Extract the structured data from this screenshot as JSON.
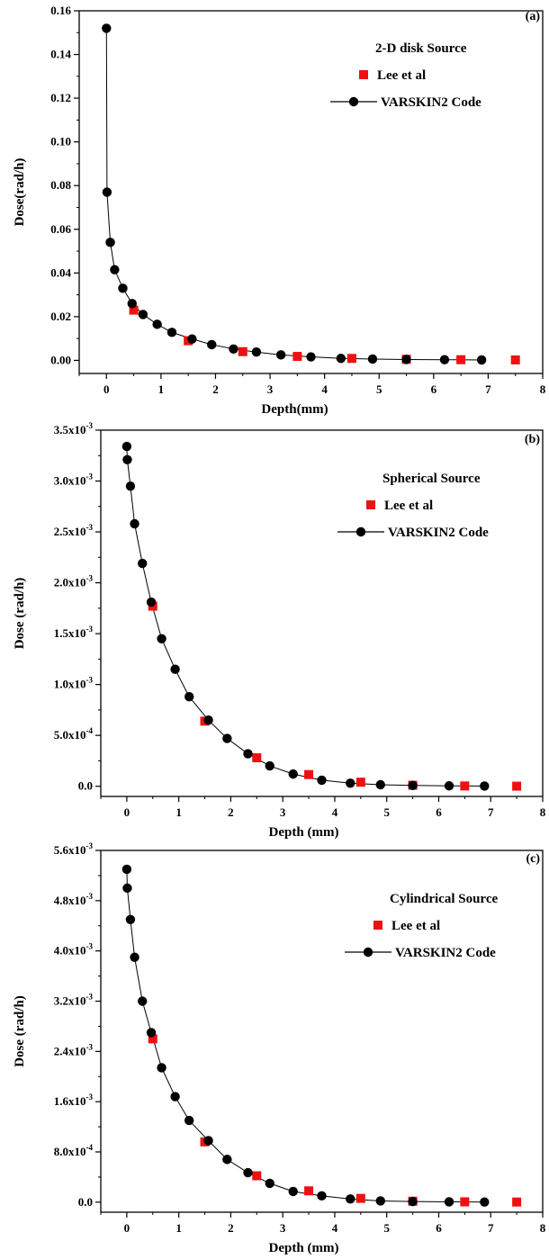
{
  "figure": {
    "panels": [
      {
        "tag": "(a)",
        "legend_title": "2-D disk Source",
        "xlabel": "Depth(mm)",
        "ylabel": "Dose(rad/h)"
      },
      {
        "tag": "(b)",
        "legend_title": "Spherical Source",
        "xlabel": "Depth (mm)",
        "ylabel": "Dose (rad/h)"
      },
      {
        "tag": "(c)",
        "legend_title": "Cylindrical Source",
        "xlabel": "Depth (mm)",
        "ylabel": "Dose (rad/h)"
      }
    ]
  },
  "colors": {
    "lee_marker": "#ee1111",
    "varskin_marker": "#000000",
    "axis": "#000000"
  },
  "chart_data": [
    {
      "type": "scatter",
      "title": "2-D disk Source",
      "xlabel": "Depth(mm)",
      "ylabel": "Dose(rad/h)",
      "xlim": [
        -0.5,
        8
      ],
      "ylim": [
        -0.006,
        0.16
      ],
      "xticks": [
        0,
        1,
        2,
        3,
        4,
        5,
        6,
        7,
        8
      ],
      "xtick_labels": [
        "0",
        "1",
        "2",
        "3",
        "4",
        "5",
        "6",
        "7",
        "8"
      ],
      "yticks": [
        0,
        0.02,
        0.04,
        0.06,
        0.08,
        0.1,
        0.12,
        0.14,
        0.16
      ],
      "ytick_labels": [
        "0.00",
        "0.02",
        "0.04",
        "0.06",
        "0.08",
        "0.10",
        "0.12",
        "0.14",
        "0.16"
      ],
      "legend_position": "top-right",
      "series": [
        {
          "name": "Lee et al",
          "marker": "square",
          "line": false,
          "x": [
            0.5,
            1.5,
            2.5,
            3.5,
            4.5,
            5.5,
            6.5,
            7.5
          ],
          "y": [
            0.023,
            0.009,
            0.004,
            0.0018,
            0.0009,
            0.0005,
            0.0003,
            0.0002
          ]
        },
        {
          "name": "VARSKIN2 Code",
          "marker": "circle",
          "line": true,
          "x": [
            0.0,
            0.01,
            0.07,
            0.15,
            0.3,
            0.47,
            0.67,
            0.93,
            1.2,
            1.57,
            1.93,
            2.33,
            2.75,
            3.2,
            3.75,
            4.3,
            4.88,
            5.5,
            6.2,
            6.88
          ],
          "y": [
            0.152,
            0.077,
            0.054,
            0.0415,
            0.033,
            0.026,
            0.021,
            0.0165,
            0.0128,
            0.0098,
            0.0072,
            0.0052,
            0.0038,
            0.0025,
            0.0016,
            0.0009,
            0.0006,
            0.0004,
            0.0003,
            0.0002
          ]
        }
      ]
    },
    {
      "type": "scatter",
      "title": "Spherical Source",
      "xlabel": "Depth (mm)",
      "ylabel": "Dose (rad/h)",
      "xlim": [
        -0.5,
        8
      ],
      "ylim": [
        -0.0001,
        0.0035
      ],
      "xticks": [
        0,
        1,
        2,
        3,
        4,
        5,
        6,
        7,
        8
      ],
      "xtick_labels": [
        "0",
        "1",
        "2",
        "3",
        "4",
        "5",
        "6",
        "7",
        "8"
      ],
      "yticks": [
        0,
        0.0005,
        0.001,
        0.0015,
        0.002,
        0.0025,
        0.003,
        0.0035
      ],
      "ytick_labels": [
        {
          "base": "0.0",
          "exp": ""
        },
        {
          "base": "5.0x10",
          "exp": "-4"
        },
        {
          "base": "1.0x10",
          "exp": "-3"
        },
        {
          "base": "1.5x10",
          "exp": "-3"
        },
        {
          "base": "2.0x10",
          "exp": "-3"
        },
        {
          "base": "2.5x10",
          "exp": "-3"
        },
        {
          "base": "3.0x10",
          "exp": "-3"
        },
        {
          "base": "3.5x10",
          "exp": "-3"
        }
      ],
      "legend_position": "top-right",
      "series": [
        {
          "name": "Lee et al",
          "marker": "square",
          "line": false,
          "x": [
            0.5,
            1.5,
            2.5,
            3.5,
            4.5,
            5.5,
            6.5,
            7.5
          ],
          "y": [
            0.00177,
            0.00064,
            0.00028,
            0.000115,
            4e-05,
            1e-05,
            3e-06,
            1e-06
          ]
        },
        {
          "name": "VARSKIN2 Code",
          "marker": "circle",
          "line": true,
          "x": [
            0.0,
            0.01,
            0.07,
            0.15,
            0.3,
            0.47,
            0.67,
            0.93,
            1.2,
            1.57,
            1.93,
            2.33,
            2.75,
            3.2,
            3.75,
            4.3,
            4.88,
            5.5,
            6.2,
            6.88
          ],
          "y": [
            0.00334,
            0.00321,
            0.00295,
            0.00258,
            0.00219,
            0.00181,
            0.00145,
            0.00115,
            0.00088,
            0.00065,
            0.00047,
            0.00032,
            0.0002,
            0.00012,
            6e-05,
            3e-05,
            1.5e-05,
            8e-06,
            4e-06,
            2e-06
          ]
        }
      ]
    },
    {
      "type": "scatter",
      "title": "Cylindrical Source",
      "xlabel": "Depth (mm)",
      "ylabel": "Dose (rad/h)",
      "xlim": [
        -0.5,
        8
      ],
      "ylim": [
        -0.00016,
        0.0056
      ],
      "xticks": [
        0,
        1,
        2,
        3,
        4,
        5,
        6,
        7,
        8
      ],
      "xtick_labels": [
        "0",
        "1",
        "2",
        "3",
        "4",
        "5",
        "6",
        "7",
        "8"
      ],
      "yticks": [
        0,
        0.0008,
        0.0016,
        0.0024,
        0.0032,
        0.004,
        0.0048,
        0.0056
      ],
      "ytick_labels": [
        {
          "base": "0.0",
          "exp": ""
        },
        {
          "base": "8.0x10",
          "exp": "-4"
        },
        {
          "base": "1.6x10",
          "exp": "-3"
        },
        {
          "base": "2.4x10",
          "exp": "-3"
        },
        {
          "base": "3.2x10",
          "exp": "-3"
        },
        {
          "base": "4.0x10",
          "exp": "-3"
        },
        {
          "base": "4.8x10",
          "exp": "-3"
        },
        {
          "base": "5.6x10",
          "exp": "-3"
        }
      ],
      "legend_position": "top-right",
      "series": [
        {
          "name": "Lee et al",
          "marker": "square",
          "line": false,
          "x": [
            0.5,
            1.5,
            2.5,
            3.5,
            4.5,
            5.5,
            6.5,
            7.5
          ],
          "y": [
            0.0026,
            0.00096,
            0.00042,
            0.00018,
            6e-05,
            1.5e-05,
            5e-06,
            2e-06
          ]
        },
        {
          "name": "VARSKIN2 Code",
          "marker": "circle",
          "line": true,
          "x": [
            0.0,
            0.01,
            0.07,
            0.15,
            0.3,
            0.47,
            0.67,
            0.93,
            1.2,
            1.57,
            1.93,
            2.33,
            2.75,
            3.2,
            3.75,
            4.3,
            4.88,
            5.5,
            6.2,
            6.88
          ],
          "y": [
            0.0053,
            0.005,
            0.0045,
            0.0039,
            0.0032,
            0.0027,
            0.00214,
            0.00168,
            0.0013,
            0.00098,
            0.00068,
            0.00047,
            0.0003,
            0.00017,
            0.0001,
            5e-05,
            2e-05,
            1e-05,
            5e-06,
            2e-06
          ]
        }
      ]
    }
  ]
}
